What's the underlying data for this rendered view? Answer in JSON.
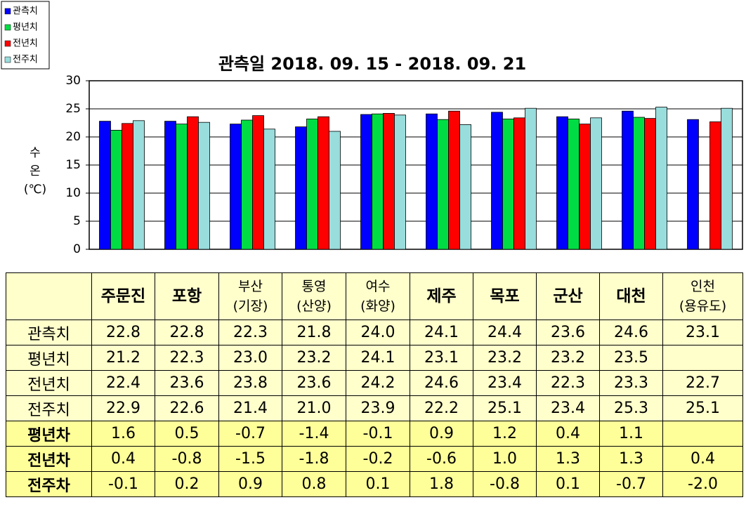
{
  "chart_data": {
    "type": "bar",
    "title": "관측일 2018. 09. 15 - 2018. 09. 21",
    "y_label": "수\n온\n(℃)",
    "categories": [
      "주문진",
      "포항",
      "부산\n(기장)",
      "통영\n(산양)",
      "여수\n(화양)",
      "제주",
      "목포",
      "군산",
      "대천",
      "인천\n(용유도)"
    ],
    "ylim": [
      0,
      30
    ],
    "yticks": [
      0,
      5,
      10,
      15,
      20,
      25,
      30
    ],
    "grid": true,
    "legend": "top-left",
    "series": [
      {
        "name": "관측치",
        "color": "#0000ff",
        "values": [
          22.8,
          22.8,
          22.3,
          21.8,
          24.0,
          24.1,
          24.4,
          23.6,
          24.6,
          23.1
        ],
        "value_labels": [
          "22.8",
          "22.8",
          "22.3",
          "21.8",
          "24.0",
          "24.1",
          "24.4",
          "23.6",
          "24.6",
          "23.1"
        ]
      },
      {
        "name": "평년치",
        "color": "#00dd44",
        "values": [
          21.2,
          22.3,
          23.0,
          23.2,
          24.1,
          23.1,
          23.2,
          23.2,
          23.5,
          null
        ],
        "value_labels": [
          "21.2",
          "22.3",
          "23.0",
          "23.2",
          "24.1",
          "23.1",
          "23.2",
          "23.2",
          "23.5",
          null
        ]
      },
      {
        "name": "전년치",
        "color": "#ff0000",
        "values": [
          22.4,
          23.6,
          23.8,
          23.6,
          24.2,
          24.6,
          23.4,
          22.3,
          23.3,
          22.7
        ],
        "value_labels": [
          "22.4",
          "23.6",
          "23.8",
          "23.6",
          "24.2",
          "24.6",
          "23.4",
          "22.3",
          "23.3",
          "22.7"
        ]
      },
      {
        "name": "전주치",
        "color": "#99dddd",
        "values": [
          22.9,
          22.6,
          21.4,
          21.0,
          23.9,
          22.2,
          25.1,
          23.4,
          25.3,
          25.1
        ],
        "value_labels": [
          "22.9",
          "22.6",
          "21.4",
          "21.0",
          "23.9",
          "22.2",
          "25.1",
          "23.4",
          "25.3",
          "25.1"
        ]
      }
    ]
  },
  "table": {
    "rows": [
      {
        "label": "평년차",
        "values": [
          "1.6",
          "0.5",
          "-0.7",
          "-1.4",
          "-0.1",
          "0.9",
          "1.2",
          "0.4",
          "1.1",
          null
        ]
      },
      {
        "label": "전년차",
        "values": [
          "0.4",
          "-0.8",
          "-1.5",
          "-1.8",
          "-0.2",
          "-0.6",
          "1.0",
          "1.3",
          "1.3",
          "0.4"
        ]
      },
      {
        "label": "전주차",
        "values": [
          "-0.1",
          "0.2",
          "0.9",
          "0.8",
          "0.1",
          "1.8",
          "-0.8",
          "0.1",
          "-0.7",
          "-2.0"
        ]
      }
    ]
  }
}
